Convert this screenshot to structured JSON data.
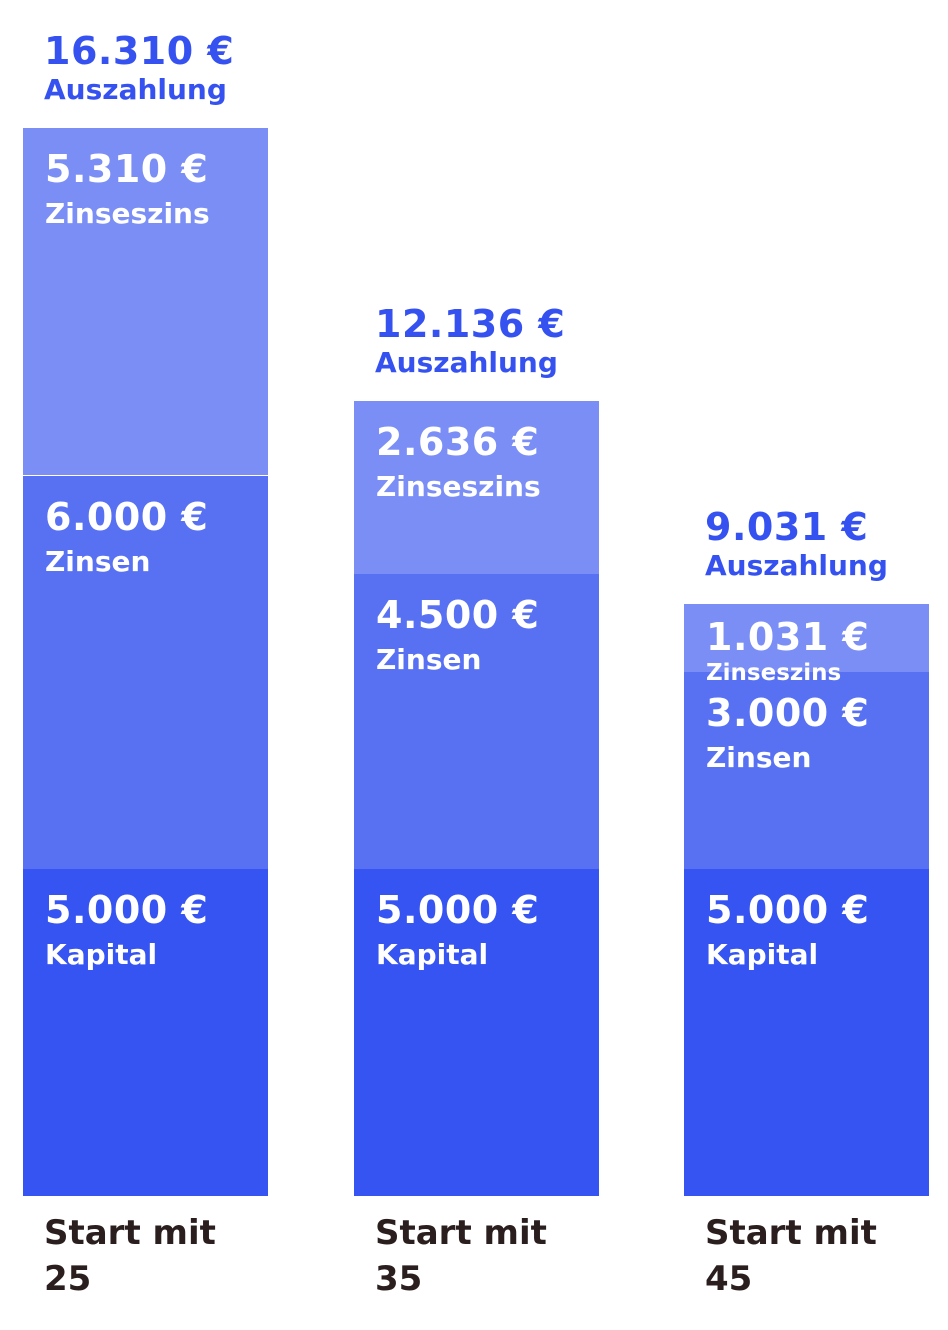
{
  "colors": {
    "kapital": "#3554f1",
    "zinsen": "#5771f2",
    "zinseszins": "#7a8ef5",
    "total_text": "#3552f0",
    "axis_text": "#2a1e1e"
  },
  "chart_data": {
    "type": "bar",
    "stacked": true,
    "categories": [
      {
        "line1": "Start mit",
        "line2": "25"
      },
      {
        "line1": "Start mit",
        "line2": "35"
      },
      {
        "line1": "Start mit",
        "line2": "45"
      }
    ],
    "series": [
      {
        "name": "Kapital",
        "values": [
          5000,
          5000,
          5000
        ],
        "labels": [
          "5.000 €",
          "5.000 €",
          "5.000 €"
        ]
      },
      {
        "name": "Zinsen",
        "values": [
          6000,
          4500,
          3000
        ],
        "labels": [
          "6.000 €",
          "4.500 €",
          "3.000 €"
        ]
      },
      {
        "name": "Zinseszins",
        "values": [
          5310,
          2636,
          1031
        ],
        "labels": [
          "5.310 €",
          "2.636 €",
          "1.031 €"
        ]
      }
    ],
    "totals": {
      "name": "Auszahlung",
      "values": [
        16310,
        12136,
        9031
      ],
      "labels": [
        "16.310 €",
        "12.136 €",
        "9.031 €"
      ]
    },
    "ylim": [
      0,
      16310
    ],
    "grid": false,
    "legend": "none"
  }
}
